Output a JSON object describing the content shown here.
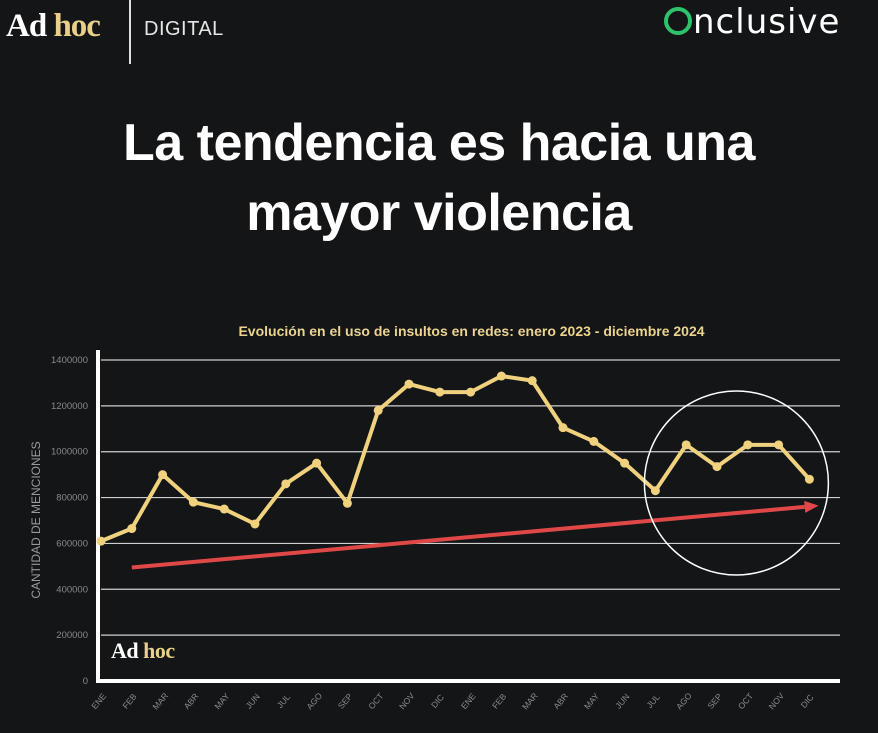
{
  "header": {
    "logo_left": {
      "part1": "Ad",
      "part2": "hoc",
      "suffix": "DIGITAL"
    },
    "logo_right": {
      "first_letter": "O",
      "rest": "nclusive"
    }
  },
  "headline": {
    "line1": "La tendencia es hacia una",
    "line2": "mayor violencia"
  },
  "watermark": {
    "part1": "Ad",
    "part2": "hoc"
  },
  "colors": {
    "background": "#131517",
    "line": "#f0d27e",
    "trend": "#e04848",
    "title": "#ecd38e",
    "grid": "#cfcfcf",
    "axis": "#ffffff",
    "brand_green": "#2ec36a"
  },
  "chart_data": {
    "type": "line",
    "title": "Evolución en el uso de insultos en redes: enero 2023 - diciembre 2024",
    "xlabel": "",
    "ylabel": "CANTIDAD DE MENCIONES",
    "ylim": [
      0,
      1400000
    ],
    "yticks": [
      0,
      200000,
      400000,
      600000,
      800000,
      1000000,
      1200000,
      1400000
    ],
    "ytick_labels": [
      "0",
      "200000",
      "400000",
      "600000",
      "800000",
      "1000000",
      "1200000",
      "1400000"
    ],
    "grid": true,
    "categories": [
      "ENE",
      "FEB",
      "MAR",
      "ABR",
      "MAY",
      "JUN",
      "JUL",
      "AGO",
      "SEP",
      "OCT",
      "NOV",
      "DIC",
      "ENE",
      "FEB",
      "MAR",
      "ABR",
      "MAY",
      "JUN",
      "JUL",
      "AGO",
      "SEP",
      "OCT",
      "NOV",
      "DIC"
    ],
    "series": [
      {
        "name": "Menciones",
        "values": [
          610000,
          665000,
          900000,
          780000,
          750000,
          685000,
          860000,
          950000,
          775000,
          1180000,
          1295000,
          1260000,
          1260000,
          1330000,
          1310000,
          1105000,
          1045000,
          950000,
          830000,
          1030000,
          935000,
          1030000,
          1030000,
          880000
        ]
      }
    ],
    "annotations": [
      {
        "type": "trend-arrow",
        "from": {
          "index": 1,
          "value": 495000
        },
        "to": {
          "index": 23.3,
          "value": 765000
        }
      },
      {
        "type": "circle",
        "label": "",
        "range_index": [
          18,
          23
        ]
      }
    ]
  }
}
